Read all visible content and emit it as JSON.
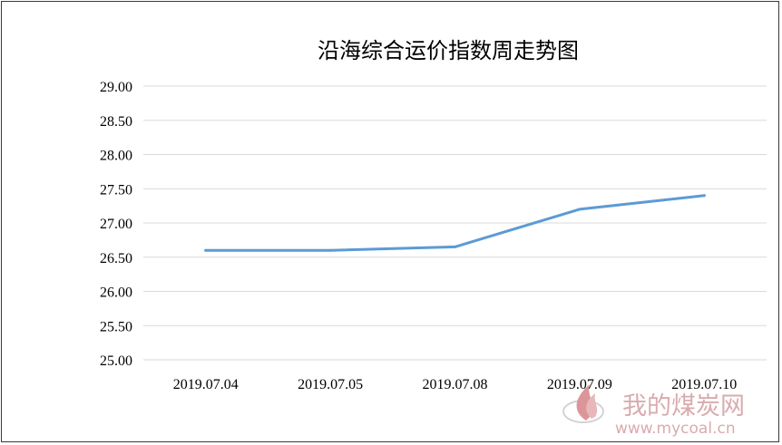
{
  "chart_data": {
    "type": "line",
    "title": "沿海综合运价指数周走势图",
    "categories": [
      "2019.07.04",
      "2019.07.05",
      "2019.07.08",
      "2019.07.09",
      "2019.07.10"
    ],
    "series": [
      {
        "values": [
          26.6,
          26.6,
          26.65,
          27.2,
          27.4
        ],
        "color": "#5b9bd5"
      }
    ],
    "yticks": [
      "25.00",
      "25.50",
      "26.00",
      "26.50",
      "27.00",
      "27.50",
      "28.00",
      "28.50",
      "29.00"
    ],
    "ylim": [
      25,
      29
    ],
    "grid": true,
    "legend": "none"
  },
  "watermark": {
    "name": "我的煤炭网",
    "url": "www.mycoal.cn",
    "icon": "flame-logo-icon",
    "color": "#d5a3a6"
  }
}
